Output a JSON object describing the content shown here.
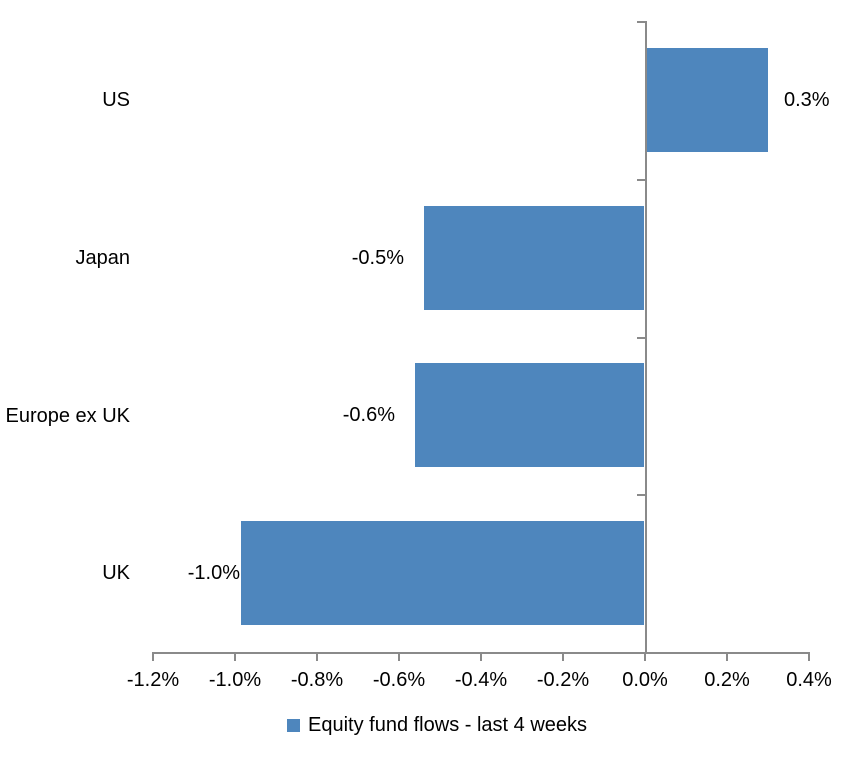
{
  "chart_data": {
    "type": "bar",
    "orientation": "horizontal",
    "title": "",
    "categories": [
      "US",
      "Japan",
      "Europe ex UK",
      "UK"
    ],
    "series": [
      {
        "name": "Equity fund flows - last 4 weeks",
        "values": [
          0.3,
          -0.54,
          -0.56,
          -0.985
        ],
        "value_labels": [
          "0.3%",
          "-0.5%",
          "-0.6%",
          "-1.0%"
        ]
      }
    ],
    "x_axis": {
      "min": -1.2,
      "max": 0.4,
      "step": 0.2,
      "tick_labels": [
        "-1.2%",
        "-1.0%",
        "-0.8%",
        "-0.6%",
        "-0.4%",
        "-0.2%",
        "0.0%",
        "0.2%",
        "0.4%"
      ],
      "unit": "%"
    },
    "legend": {
      "position": "bottom",
      "entries": [
        "Equity fund flows - last 4 weeks"
      ]
    },
    "grid": false,
    "colors": {
      "bar": "#4e86bd",
      "axis": "#8a8a8a",
      "text": "#000000",
      "background": "#ffffff"
    }
  }
}
